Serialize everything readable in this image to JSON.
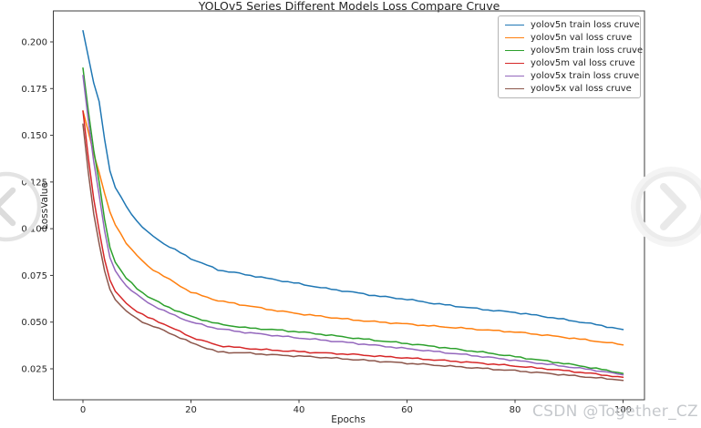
{
  "chart_data": {
    "type": "line",
    "title": "YOLOv5 Series Different Models Loss Compare Cruve",
    "xlabel": "Epochs",
    "ylabel": "LossValue",
    "x_ticks": [
      0,
      20,
      40,
      60,
      80,
      100
    ],
    "y_ticks": [
      0.025,
      0.05,
      0.075,
      0.1,
      0.125,
      0.15,
      0.175,
      0.2
    ],
    "xlim": [
      -5.7,
      104
    ],
    "ylim": [
      0.0084,
      0.2166
    ],
    "grid": false,
    "legend_position": "upper right",
    "axis_color": "#3c3c3c",
    "tick_label_color": "#262626",
    "x": [
      0,
      1,
      2,
      3,
      4,
      5,
      6,
      8,
      10,
      12,
      15,
      20,
      25,
      30,
      35,
      40,
      45,
      50,
      55,
      60,
      65,
      70,
      75,
      80,
      85,
      90,
      95,
      100
    ],
    "series": [
      {
        "name": "yolov5n train loss cruve",
        "color": "#1f77b4",
        "values": [
          0.206,
          0.192,
          0.178,
          0.168,
          0.148,
          0.131,
          0.122,
          0.112,
          0.104,
          0.098,
          0.092,
          0.084,
          0.078,
          0.0755,
          0.073,
          0.0705,
          0.068,
          0.066,
          0.0638,
          0.0622,
          0.06,
          0.0582,
          0.0565,
          0.0552,
          0.0532,
          0.051,
          0.0487,
          0.046
        ]
      },
      {
        "name": "yolov5n val loss cruve",
        "color": "#ff7f0e",
        "values": [
          0.163,
          0.152,
          0.14,
          0.13,
          0.119,
          0.109,
          0.102,
          0.0925,
          0.0855,
          0.08,
          0.0745,
          0.066,
          0.0615,
          0.059,
          0.0565,
          0.0545,
          0.0528,
          0.0512,
          0.05,
          0.049,
          0.0478,
          0.0468,
          0.0457,
          0.0447,
          0.0432,
          0.0416,
          0.0398,
          0.0378
        ]
      },
      {
        "name": "yolov5m train loss cruve",
        "color": "#2ca02c",
        "values": [
          0.186,
          0.163,
          0.142,
          0.125,
          0.105,
          0.09,
          0.082,
          0.0735,
          0.068,
          0.0638,
          0.059,
          0.053,
          0.049,
          0.047,
          0.046,
          0.0448,
          0.0432,
          0.0415,
          0.04,
          0.0385,
          0.037,
          0.0352,
          0.0335,
          0.0315,
          0.0295,
          0.0275,
          0.0252,
          0.0225
        ]
      },
      {
        "name": "yolov5m val loss cruve",
        "color": "#d62728",
        "values": [
          0.163,
          0.138,
          0.116,
          0.099,
          0.0835,
          0.0725,
          0.0665,
          0.06,
          0.0558,
          0.0525,
          0.049,
          0.042,
          0.0375,
          0.036,
          0.035,
          0.0342,
          0.0334,
          0.0327,
          0.0317,
          0.0308,
          0.0298,
          0.0288,
          0.0277,
          0.0265,
          0.0252,
          0.0238,
          0.0222,
          0.0205
        ]
      },
      {
        "name": "yolov5x train loss cruve",
        "color": "#9467bd",
        "values": [
          0.182,
          0.158,
          0.136,
          0.118,
          0.099,
          0.0845,
          0.0775,
          0.0695,
          0.0645,
          0.0605,
          0.056,
          0.05,
          0.0465,
          0.0445,
          0.043,
          0.0415,
          0.0402,
          0.0388,
          0.0373,
          0.0358,
          0.0343,
          0.0328,
          0.0312,
          0.0295,
          0.0278,
          0.026,
          0.0242,
          0.0218
        ]
      },
      {
        "name": "yolov5x val loss cruve",
        "color": "#8c564b",
        "values": [
          0.156,
          0.13,
          0.108,
          0.092,
          0.0775,
          0.0675,
          0.062,
          0.0558,
          0.0518,
          0.0488,
          0.0455,
          0.039,
          0.034,
          0.0335,
          0.0325,
          0.0318,
          0.031,
          0.03,
          0.029,
          0.028,
          0.027,
          0.026,
          0.025,
          0.024,
          0.0228,
          0.0215,
          0.0202,
          0.0188
        ]
      }
    ]
  },
  "watermark": {
    "text": "CSDN @Together_CZ",
    "color": "#c5c8cc"
  },
  "carousel": {
    "prev_icon": "chevron-left-icon",
    "next_icon": "chevron-right-icon"
  }
}
